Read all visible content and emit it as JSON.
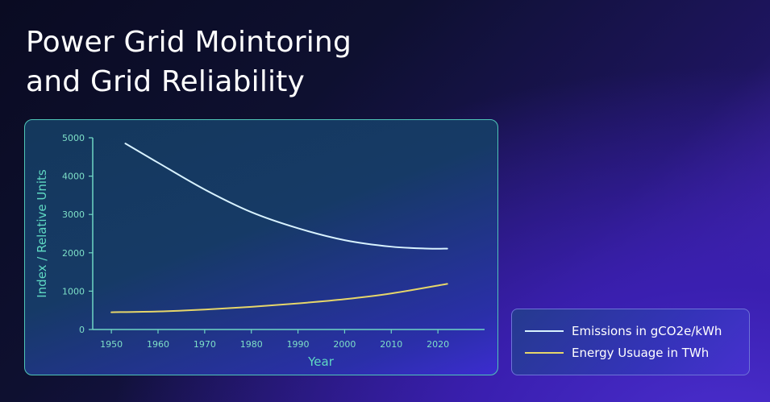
{
  "page": {
    "title_line1": "Power Grid Mointoring",
    "title_line2": "and Grid Reliability"
  },
  "colors": {
    "emissions_line": "#d8f2ff",
    "energy_line": "#e6d66a",
    "axis": "#6fd6c4",
    "tick_text": "#7ee0c8"
  },
  "chart_data": {
    "type": "line",
    "title": "",
    "xlabel": "Year",
    "ylabel": "Index / Relative Units",
    "xlim": [
      1946,
      2030
    ],
    "ylim": [
      0,
      5000
    ],
    "x_ticks": [
      1950,
      1960,
      1970,
      1980,
      1990,
      2000,
      2010,
      2020
    ],
    "y_ticks": [
      0,
      1000,
      2000,
      3000,
      4000,
      5000
    ],
    "grid": false,
    "legend_position": "bottom-right-outside",
    "series": [
      {
        "name": "Emissions in gCO2e/kWh",
        "color": "#d8f2ff",
        "x": [
          1953,
          1960,
          1970,
          1980,
          1990,
          2000,
          2010,
          2018,
          2022
        ],
        "y": [
          4850,
          4350,
          3650,
          3060,
          2640,
          2330,
          2160,
          2110,
          2110
        ]
      },
      {
        "name": "Energy Usuage in TWh",
        "color": "#e6d66a",
        "x": [
          1950,
          1960,
          1970,
          1980,
          1990,
          2000,
          2010,
          2022
        ],
        "y": [
          450,
          470,
          520,
          590,
          680,
          790,
          940,
          1190
        ]
      }
    ]
  },
  "legend": {
    "items": [
      {
        "label": "Emissions in gCO2e/kWh",
        "color": "#d8f2ff"
      },
      {
        "label": "Energy Usuage in TWh",
        "color": "#e6d66a"
      }
    ]
  }
}
